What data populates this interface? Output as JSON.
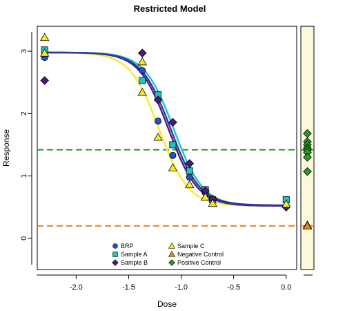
{
  "chart_data": {
    "type": "scatter",
    "title": "Restricted Model",
    "xlabel": "Dose",
    "ylabel": "Response",
    "xlim": [
      -2.37,
      0.1
    ],
    "ylim": [
      -0.5,
      3.4
    ],
    "x_ticks": [
      -2.0,
      -1.5,
      -1.0,
      -0.5,
      0.0
    ],
    "x_tick_labels": [
      "-2.0",
      "-1.5",
      "-1.0",
      "-0.5",
      "0.0"
    ],
    "y_ticks": [
      0,
      1,
      2,
      3
    ],
    "y_tick_labels": [
      "0",
      "1",
      "2",
      "3"
    ],
    "grid": false,
    "legend_position": "bottom-center",
    "reference_lines": [
      {
        "name": "Positive Control mean",
        "y": 1.42,
        "color": "#22a022",
        "style": "dashed"
      },
      {
        "name": "Negative Control mean",
        "y": 0.2,
        "color": "#f07f1e",
        "style": "dashed"
      }
    ],
    "curves": [
      {
        "series": "Sample C",
        "color": "#f5ea2a",
        "top": 2.98,
        "bottom": 0.52,
        "ec50": -1.21,
        "slope": 7.2
      },
      {
        "series": "Sample A",
        "color": "#1ec4c0",
        "top": 2.98,
        "bottom": 0.52,
        "ec50": -1.07,
        "slope": 7.2
      },
      {
        "series": "Sample B",
        "color": "#4a1a80",
        "top": 2.98,
        "bottom": 0.52,
        "ec50": -1.12,
        "slope": 7.2
      },
      {
        "series": "BRP",
        "color": "#2a3aa0",
        "top": 2.98,
        "bottom": 0.53,
        "ec50": -1.1,
        "slope": 7.2
      }
    ],
    "series": [
      {
        "name": "BRP",
        "marker": "circle",
        "color": "#2a50c8",
        "points": [
          [
            -2.3,
            2.9
          ],
          [
            -1.37,
            2.69
          ],
          [
            -1.22,
            1.88
          ],
          [
            -1.08,
            1.33
          ],
          [
            -0.92,
            0.98
          ],
          [
            -0.77,
            0.73
          ],
          [
            -0.7,
            0.6
          ],
          [
            0.0,
            0.52
          ]
        ]
      },
      {
        "name": "Sample A",
        "marker": "square",
        "color": "#1ec4c0",
        "points": [
          [
            -2.3,
            3.02
          ],
          [
            -1.37,
            2.53
          ],
          [
            -1.22,
            2.3
          ],
          [
            -1.08,
            1.5
          ],
          [
            -0.92,
            1.08
          ],
          [
            -0.77,
            0.78
          ],
          [
            -0.7,
            0.62
          ],
          [
            0.0,
            0.62
          ]
        ]
      },
      {
        "name": "Sample B",
        "marker": "diamond",
        "color": "#4a1a80",
        "points": [
          [
            -2.3,
            2.53
          ],
          [
            -1.37,
            2.97
          ],
          [
            -1.22,
            2.22
          ],
          [
            -1.08,
            1.86
          ],
          [
            -0.92,
            1.2
          ],
          [
            -0.77,
            0.76
          ],
          [
            -0.7,
            0.63
          ],
          [
            0.0,
            0.5
          ]
        ]
      },
      {
        "name": "Sample C",
        "marker": "triangle-up",
        "color": "#f5ea2a",
        "points": [
          [
            -2.3,
            3.22
          ],
          [
            -2.3,
            2.97
          ],
          [
            -1.37,
            2.83
          ],
          [
            -1.37,
            2.34
          ],
          [
            -1.22,
            1.62
          ],
          [
            -1.08,
            1.13
          ],
          [
            -0.92,
            0.86
          ],
          [
            -0.77,
            0.66
          ],
          [
            -0.7,
            0.56
          ],
          [
            0.0,
            0.55
          ]
        ]
      },
      {
        "name": "Negative Control",
        "marker": "triangle-up",
        "color": "#f07f1e",
        "points": [
          0.21,
          0.2
        ]
      },
      {
        "name": "Positive Control",
        "marker": "diamond",
        "color": "#22a022",
        "points": [
          1.68,
          1.55,
          1.5,
          1.45,
          1.42,
          1.38,
          1.3,
          1.07
        ]
      }
    ],
    "legend": [
      {
        "label": "BRP",
        "marker": "circle",
        "color": "#2a50c8"
      },
      {
        "label": "Sample A",
        "marker": "square",
        "color": "#1ec4c0"
      },
      {
        "label": "Sample B",
        "marker": "diamond",
        "color": "#4a1a80"
      },
      {
        "label": "Sample C",
        "marker": "triangle-up",
        "color": "#f5ea2a"
      },
      {
        "label": "Negative Control",
        "marker": "triangle-up",
        "color": "#f07f1e"
      },
      {
        "label": "Positive Control",
        "marker": "diamond",
        "color": "#22a022"
      }
    ]
  },
  "colors": {
    "control_panel_bg": "#fdf8dc",
    "marker_outline": "#000000"
  }
}
